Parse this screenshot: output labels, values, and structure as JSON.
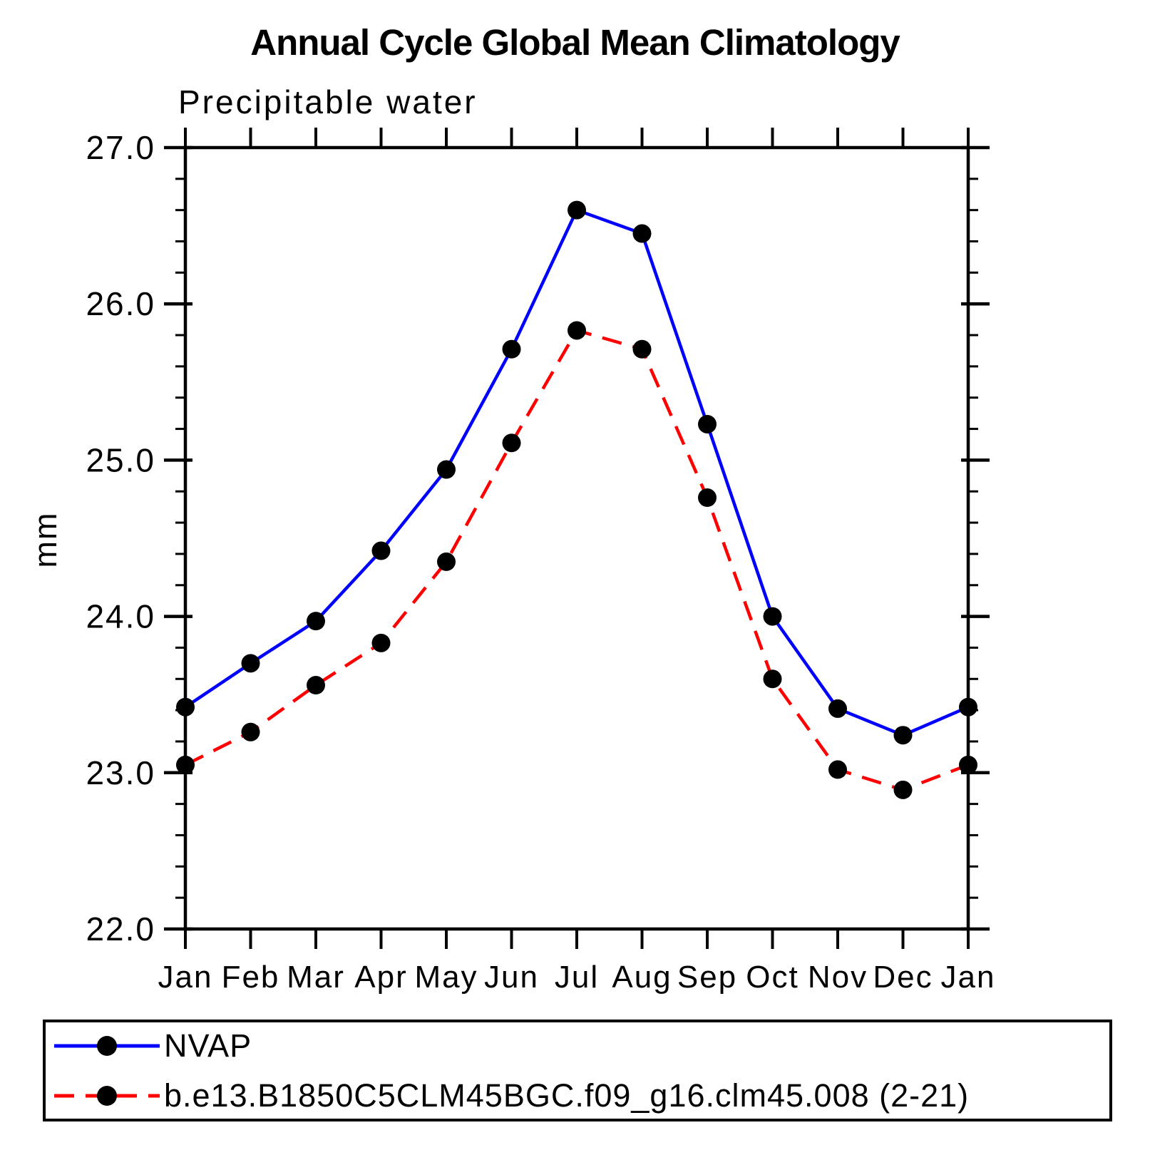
{
  "page": {
    "background": "#ffffff"
  },
  "chart_data": {
    "type": "line",
    "title": "Annual Cycle Global Mean Climatology",
    "subtitle": "Precipitable water",
    "ylabel": "mm",
    "xlabel": "",
    "categories": [
      "Jan",
      "Feb",
      "Mar",
      "Apr",
      "May",
      "Jun",
      "Jul",
      "Aug",
      "Sep",
      "Oct",
      "Nov",
      "Dec",
      "Jan"
    ],
    "ylim": [
      22.0,
      27.0
    ],
    "y_tick_labels": [
      "22.0",
      "23.0",
      "24.0",
      "25.0",
      "26.0",
      "27.0"
    ],
    "y_minor_step": 0.2,
    "grid": false,
    "legend_position": "bottom-left",
    "axis_color": "#000000",
    "marker": "filled-circle",
    "marker_color": "#000000",
    "series": [
      {
        "name": "NVAP",
        "line_color": "#0000ff",
        "line_style": "solid",
        "values": [
          23.42,
          23.7,
          23.97,
          24.42,
          24.94,
          25.71,
          26.6,
          26.45,
          25.23,
          24.0,
          23.41,
          23.24,
          23.42
        ]
      },
      {
        "name": "b.e13.B1850C5CLM45BGC.f09_g16.clm45.008 (2-21)",
        "line_color": "#ff0000",
        "line_style": "dashed",
        "values": [
          23.05,
          23.26,
          23.56,
          23.83,
          24.35,
          25.11,
          25.83,
          25.71,
          24.76,
          23.6,
          23.02,
          22.89,
          23.05
        ]
      }
    ]
  }
}
